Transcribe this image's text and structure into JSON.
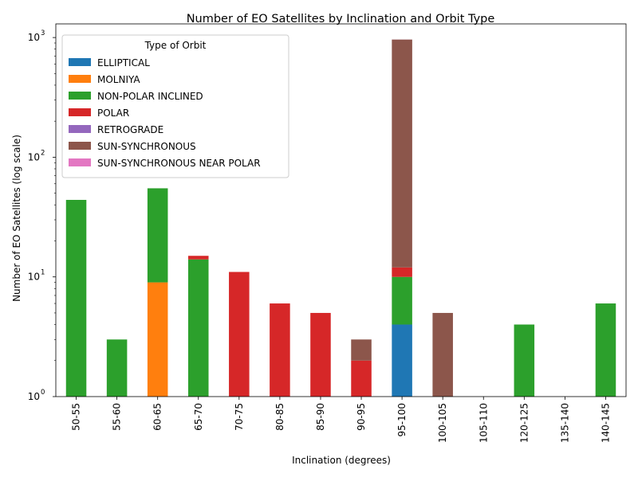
{
  "chart_data": {
    "type": "bar",
    "stacked": true,
    "title": "Number of EO Satellites by Inclination and Orbit Type",
    "xlabel": "Inclination (degrees)",
    "ylabel": "Number of EO Satellites (log scale)",
    "yscale": "log",
    "ylim": [
      1,
      1300
    ],
    "y_tick_labels": [
      "10",
      "10",
      "10",
      "10"
    ],
    "y_tick_exponents": [
      "0",
      "1",
      "2",
      "3"
    ],
    "y_tick_values": [
      1,
      10,
      100,
      1000
    ],
    "legend_title": "Type of Orbit",
    "legend_position": "top-left",
    "categories": [
      "50-55",
      "55-60",
      "60-65",
      "65-70",
      "70-75",
      "80-85",
      "85-90",
      "90-95",
      "95-100",
      "100-105",
      "105-110",
      "120-125",
      "135-140",
      "140-145"
    ],
    "series": [
      {
        "name": "ELLIPTICAL",
        "color": "#1f77b4",
        "values": [
          0,
          0,
          0,
          0,
          0,
          0,
          0,
          0,
          4,
          0,
          0,
          0,
          0,
          0
        ]
      },
      {
        "name": "MOLNIYA",
        "color": "#ff7f0e",
        "values": [
          0,
          0,
          9,
          0,
          0,
          0,
          0,
          0,
          0,
          0,
          0,
          0,
          0,
          0
        ]
      },
      {
        "name": "NON-POLAR INCLINED",
        "color": "#2ca02c",
        "values": [
          44,
          3,
          46,
          14,
          0,
          0,
          0,
          0,
          6,
          0,
          0,
          4,
          0,
          6
        ]
      },
      {
        "name": "POLAR",
        "color": "#d62728",
        "values": [
          0,
          0,
          0,
          1,
          11,
          6,
          5,
          2,
          2,
          0,
          0,
          0,
          0,
          0
        ]
      },
      {
        "name": "RETROGRADE",
        "color": "#9467bd",
        "values": [
          0,
          0,
          0,
          0,
          0,
          0,
          0,
          0,
          0,
          0,
          1,
          0,
          1,
          0
        ]
      },
      {
        "name": "SUN-SYNCHRONOUS",
        "color": "#8c564b",
        "values": [
          0,
          0,
          0,
          0,
          0,
          0,
          0,
          1,
          950,
          5,
          0,
          0,
          0,
          0
        ]
      },
      {
        "name": "SUN-SYNCHRONOUS NEAR POLAR",
        "color": "#e377c2",
        "values": [
          0,
          0,
          0,
          0,
          0,
          0,
          0,
          0,
          1,
          0,
          0,
          0,
          0,
          0
        ]
      }
    ]
  }
}
